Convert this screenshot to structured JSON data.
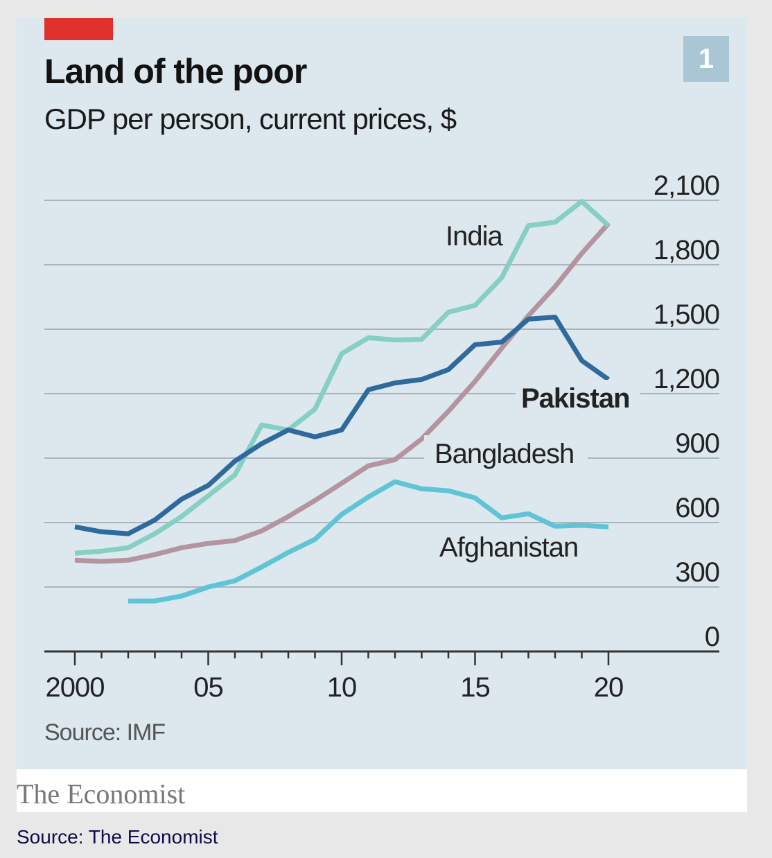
{
  "chart_data": {
    "type": "line",
    "title": "Land of the poor",
    "subtitle": "GDP per person, current prices, $",
    "chart_number": "1",
    "source": "Source: IMF",
    "publisher": "The Economist",
    "x": [
      2000,
      2001,
      2002,
      2003,
      2004,
      2005,
      2006,
      2007,
      2008,
      2009,
      2010,
      2011,
      2012,
      2013,
      2014,
      2015,
      2016,
      2017,
      2018,
      2019,
      2020
    ],
    "x_tick_values": [
      2000,
      2005,
      2010,
      2015,
      2020
    ],
    "x_tick_labels": [
      "2000",
      "05",
      "10",
      "15",
      "20"
    ],
    "y_tick_values": [
      0,
      300,
      600,
      900,
      1200,
      1500,
      1800,
      2100
    ],
    "y_tick_labels": [
      "0",
      "300",
      "600",
      "900",
      "1,200",
      "1,500",
      "1,800",
      "2,100"
    ],
    "ylim": [
      0,
      2100
    ],
    "xlim": [
      2000,
      2020
    ],
    "grid": true,
    "y_axis_side": "right",
    "series": [
      {
        "name": "India",
        "color": "#86cfc3",
        "values": [
          457,
          467,
          483,
          548,
          628,
          725,
          822,
          1054,
          1031,
          1128,
          1386,
          1460,
          1450,
          1453,
          1579,
          1611,
          1740,
          1982,
          1998,
          2095,
          1982
        ]
      },
      {
        "name": "Pakistan",
        "color": "#2f6a9e",
        "values": [
          580,
          557,
          548,
          612,
          709,
          773,
          886,
          967,
          1031,
          999,
          1031,
          1218,
          1250,
          1266,
          1312,
          1428,
          1440,
          1547,
          1556,
          1354,
          1266
        ]
      },
      {
        "name": "Bangladesh",
        "color": "#b4949f",
        "values": [
          425,
          419,
          425,
          451,
          483,
          503,
          516,
          561,
          628,
          703,
          783,
          864,
          893,
          989,
          1118,
          1257,
          1412,
          1563,
          1698,
          1853,
          1992
        ]
      },
      {
        "name": "Afghanistan",
        "color": "#5ec4d6",
        "values": [
          null,
          null,
          235,
          235,
          258,
          300,
          329,
          393,
          461,
          522,
          638,
          719,
          790,
          757,
          748,
          715,
          622,
          641,
          583,
          587,
          580
        ]
      }
    ]
  },
  "caption": "Source: The Economist"
}
